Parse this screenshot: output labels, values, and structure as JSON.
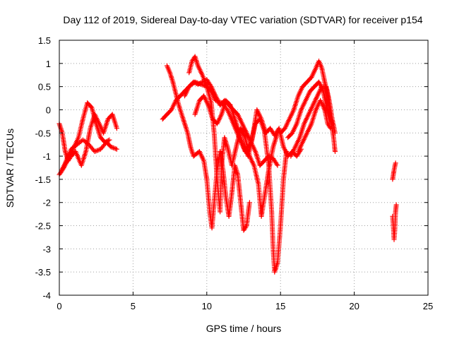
{
  "chart_data": {
    "type": "scatter",
    "title": "Day 112 of 2019, Sidereal Day-to-day VTEC variation (SDTVAR) for receiver p154",
    "xlabel": "GPS time / hours",
    "ylabel": "SDTVAR / TECUs",
    "xlim": [
      0,
      25
    ],
    "ylim": [
      -4,
      1.5
    ],
    "x_ticks": [
      0,
      5,
      10,
      15,
      20,
      25
    ],
    "x_tick_labels": [
      "0",
      "5",
      "10",
      "15",
      "20",
      "25"
    ],
    "y_ticks": [
      -4,
      -3.5,
      -3,
      -2.5,
      -2,
      -1.5,
      -1,
      -0.5,
      0,
      0.5,
      1,
      1.5
    ],
    "y_tick_labels": [
      "-4",
      "-3.5",
      "-3",
      "-2.5",
      "-2",
      "-1.5",
      "-1",
      "-0.5",
      "0",
      "0.5",
      "1",
      "1.5"
    ],
    "grid": true,
    "marker": "+",
    "color": "#ff0000",
    "series": [
      {
        "name": "track-01",
        "points": [
          [
            0.0,
            -1.4
          ],
          [
            0.3,
            -1.25
          ],
          [
            0.7,
            -1.0
          ],
          [
            1.0,
            -0.8
          ],
          [
            1.3,
            -0.6
          ],
          [
            1.6,
            -0.2
          ],
          [
            1.9,
            0.15
          ],
          [
            2.2,
            0.05
          ],
          [
            2.5,
            -0.3
          ],
          [
            2.8,
            -0.6
          ],
          [
            3.1,
            -0.7
          ],
          [
            3.4,
            -0.65
          ]
        ]
      },
      {
        "name": "track-02",
        "points": [
          [
            0.0,
            -0.3
          ],
          [
            0.2,
            -0.5
          ],
          [
            0.4,
            -0.9
          ],
          [
            0.6,
            -1.1
          ],
          [
            0.8,
            -1.0
          ],
          [
            1.1,
            -0.9
          ],
          [
            1.5,
            -1.2
          ],
          [
            1.8,
            -0.9
          ],
          [
            2.1,
            -0.4
          ],
          [
            2.4,
            -0.1
          ],
          [
            2.7,
            -0.3
          ],
          [
            3.0,
            -0.5
          ],
          [
            3.3,
            -0.2
          ],
          [
            3.6,
            -0.1
          ],
          [
            3.9,
            -0.4
          ]
        ]
      },
      {
        "name": "track-03",
        "points": [
          [
            0.1,
            -1.35
          ],
          [
            0.4,
            -1.15
          ],
          [
            0.8,
            -0.85
          ],
          [
            1.2,
            -0.75
          ],
          [
            1.6,
            -0.65
          ],
          [
            2.0,
            -0.75
          ],
          [
            2.4,
            -0.9
          ],
          [
            2.8,
            -0.85
          ],
          [
            3.2,
            -0.7
          ],
          [
            3.5,
            -0.8
          ],
          [
            3.9,
            -0.85
          ]
        ]
      },
      {
        "name": "track-04",
        "points": [
          [
            7.0,
            -0.2
          ],
          [
            7.3,
            -0.1
          ],
          [
            7.6,
            0.0
          ],
          [
            7.9,
            0.2
          ],
          [
            8.2,
            0.3
          ],
          [
            8.5,
            0.4
          ],
          [
            8.8,
            0.5
          ],
          [
            9.1,
            0.6
          ],
          [
            9.4,
            0.55
          ],
          [
            9.7,
            0.6
          ],
          [
            10.0,
            0.65
          ],
          [
            10.3,
            0.5
          ],
          [
            10.6,
            0.3
          ],
          [
            10.9,
            0.1
          ],
          [
            11.2,
            0.2
          ],
          [
            11.5,
            0.1
          ],
          [
            11.8,
            0.0
          ],
          [
            12.1,
            -0.1
          ],
          [
            12.4,
            -0.3
          ],
          [
            12.7,
            -0.5
          ],
          [
            13.0,
            -0.7
          ],
          [
            13.3,
            -0.9
          ],
          [
            13.6,
            -1.2
          ],
          [
            13.9,
            -1.1
          ],
          [
            14.2,
            -1.0
          ],
          [
            14.5,
            -1.05
          ],
          [
            14.8,
            -1.2
          ]
        ]
      },
      {
        "name": "track-05",
        "points": [
          [
            7.3,
            0.95
          ],
          [
            7.5,
            0.8
          ],
          [
            7.7,
            0.6
          ],
          [
            7.9,
            0.35
          ],
          [
            8.1,
            0.1
          ],
          [
            8.4,
            -0.2
          ],
          [
            8.7,
            -0.5
          ],
          [
            8.9,
            -0.8
          ],
          [
            9.1,
            -1.0
          ],
          [
            9.3,
            -0.95
          ],
          [
            9.5,
            -0.9
          ],
          [
            9.8,
            -1.1
          ],
          [
            10.0,
            -1.5
          ],
          [
            10.2,
            -2.2
          ],
          [
            10.35,
            -2.55
          ],
          [
            10.5,
            -2.0
          ],
          [
            10.7,
            -1.3
          ],
          [
            10.9,
            -0.9
          ],
          [
            11.1,
            -1.3
          ],
          [
            11.3,
            -1.9
          ],
          [
            11.5,
            -2.3
          ],
          [
            11.7,
            -1.8
          ],
          [
            11.9,
            -1.2
          ],
          [
            12.1,
            -1.4
          ],
          [
            12.3,
            -2.0
          ],
          [
            12.5,
            -2.6
          ],
          [
            12.7,
            -2.5
          ],
          [
            12.9,
            -2.0
          ]
        ]
      },
      {
        "name": "track-06",
        "points": [
          [
            8.8,
            0.8
          ],
          [
            9.0,
            1.05
          ],
          [
            9.2,
            1.15
          ],
          [
            9.4,
            0.95
          ],
          [
            9.7,
            0.75
          ],
          [
            10.0,
            0.5
          ],
          [
            10.3,
            0.15
          ],
          [
            10.5,
            -0.5
          ],
          [
            10.7,
            -1.5
          ],
          [
            10.9,
            -2.2
          ],
          [
            11.0,
            -1.2
          ],
          [
            11.2,
            -0.6
          ],
          [
            11.4,
            -0.8
          ],
          [
            11.7,
            -1.2
          ],
          [
            12.0,
            -0.8
          ],
          [
            12.3,
            -0.4
          ],
          [
            12.6,
            -0.6
          ],
          [
            12.9,
            -1.0
          ],
          [
            13.2,
            -1.2
          ],
          [
            13.5,
            -1.6
          ],
          [
            13.7,
            -2.3
          ],
          [
            13.9,
            -1.9
          ],
          [
            14.2,
            -1.3
          ],
          [
            14.5,
            -0.8
          ],
          [
            14.8,
            -0.5
          ]
        ]
      },
      {
        "name": "track-07",
        "points": [
          [
            8.5,
            0.3
          ],
          [
            8.8,
            0.5
          ],
          [
            9.2,
            0.6
          ],
          [
            9.6,
            0.55
          ],
          [
            10.0,
            0.5
          ],
          [
            10.3,
            0.4
          ],
          [
            10.6,
            0.2
          ],
          [
            11.0,
            0.15
          ],
          [
            11.4,
            0.0
          ],
          [
            11.8,
            -0.3
          ],
          [
            12.2,
            -0.6
          ],
          [
            12.6,
            -0.9
          ],
          [
            13.0,
            -0.7
          ],
          [
            13.3,
            -0.3
          ],
          [
            13.6,
            -0.2
          ],
          [
            13.9,
            -0.45
          ],
          [
            14.2,
            -1.2
          ],
          [
            14.4,
            -2.2
          ],
          [
            14.5,
            -3.0
          ],
          [
            14.6,
            -3.5
          ],
          [
            14.8,
            -3.3
          ],
          [
            15.0,
            -2.5
          ],
          [
            15.2,
            -1.5
          ],
          [
            15.4,
            -0.9
          ]
        ]
      },
      {
        "name": "track-08",
        "points": [
          [
            9.2,
            -0.1
          ],
          [
            9.5,
            0.2
          ],
          [
            9.8,
            0.3
          ],
          [
            10.1,
            0.1
          ],
          [
            10.4,
            -0.2
          ],
          [
            10.7,
            -0.3
          ],
          [
            11.0,
            -0.1
          ],
          [
            11.3,
            0.2
          ],
          [
            11.6,
            0.1
          ],
          [
            11.9,
            -0.2
          ],
          [
            12.2,
            -0.5
          ],
          [
            12.5,
            -0.8
          ],
          [
            12.8,
            -1.0
          ],
          [
            13.1,
            -0.6
          ],
          [
            13.4,
            0.0
          ],
          [
            13.7,
            -0.2
          ],
          [
            14.0,
            -0.5
          ],
          [
            14.3,
            -0.4
          ],
          [
            14.6,
            -0.55
          ],
          [
            14.9,
            -0.4
          ],
          [
            15.2,
            -0.8
          ],
          [
            15.5,
            -1.0
          ],
          [
            15.8,
            -0.9
          ],
          [
            16.1,
            -1.0
          ],
          [
            16.4,
            -0.85
          ]
        ]
      },
      {
        "name": "track-09",
        "points": [
          [
            15.0,
            -0.5
          ],
          [
            15.3,
            -0.4
          ],
          [
            15.6,
            -0.2
          ],
          [
            15.9,
            0.0
          ],
          [
            16.2,
            0.3
          ],
          [
            16.5,
            0.5
          ],
          [
            16.8,
            0.6
          ],
          [
            17.1,
            0.7
          ],
          [
            17.4,
            0.9
          ],
          [
            17.6,
            1.05
          ],
          [
            17.8,
            0.9
          ],
          [
            18.0,
            0.6
          ],
          [
            18.2,
            0.3
          ],
          [
            18.4,
            -0.2
          ],
          [
            18.6,
            -0.6
          ],
          [
            18.7,
            -0.9
          ]
        ]
      },
      {
        "name": "track-10",
        "points": [
          [
            15.5,
            -0.6
          ],
          [
            15.8,
            -0.5
          ],
          [
            16.1,
            -0.3
          ],
          [
            16.4,
            0.0
          ],
          [
            16.7,
            0.2
          ],
          [
            17.0,
            0.4
          ],
          [
            17.3,
            0.5
          ],
          [
            17.6,
            0.6
          ],
          [
            17.9,
            0.4
          ],
          [
            18.1,
            0.1
          ],
          [
            18.3,
            -0.1
          ],
          [
            18.5,
            -0.3
          ]
        ]
      },
      {
        "name": "track-11",
        "points": [
          [
            15.7,
            -1.0
          ],
          [
            16.0,
            -0.8
          ],
          [
            16.3,
            -0.6
          ],
          [
            16.6,
            -0.3
          ],
          [
            16.9,
            -0.1
          ],
          [
            17.2,
            0.1
          ],
          [
            17.5,
            0.3
          ],
          [
            17.8,
            0.5
          ],
          [
            18.1,
            0.5
          ],
          [
            18.3,
            0.2
          ],
          [
            18.5,
            -0.2
          ],
          [
            18.7,
            -0.5
          ]
        ]
      },
      {
        "name": "track-12",
        "points": [
          [
            16.2,
            -0.9
          ],
          [
            16.5,
            -0.7
          ],
          [
            16.8,
            -0.5
          ],
          [
            17.1,
            -0.3
          ],
          [
            17.4,
            0.0
          ],
          [
            17.7,
            0.2
          ],
          [
            18.0,
            0.0
          ],
          [
            18.2,
            -0.3
          ],
          [
            18.4,
            -0.4
          ]
        ]
      },
      {
        "name": "track-13",
        "points": [
          [
            22.6,
            -1.5
          ],
          [
            22.7,
            -1.3
          ],
          [
            22.8,
            -1.15
          ]
        ]
      },
      {
        "name": "track-14",
        "points": [
          [
            22.6,
            -2.3
          ],
          [
            22.65,
            -2.5
          ],
          [
            22.7,
            -2.8
          ],
          [
            22.75,
            -2.6
          ],
          [
            22.8,
            -2.2
          ],
          [
            22.85,
            -2.05
          ]
        ]
      }
    ]
  }
}
